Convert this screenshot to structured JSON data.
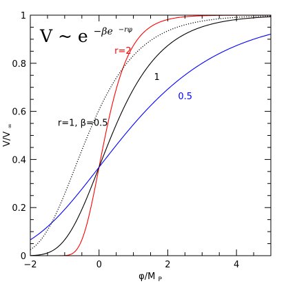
{
  "chart_data": {
    "type": "line",
    "formula": {
      "lhs": "V ~ e",
      "exponent": "−βe",
      "exponent_sup": "−rφ"
    },
    "xlabel": {
      "main": "φ/M",
      "sub": "P"
    },
    "ylabel": {
      "main": "V/V",
      "sub": "∞"
    },
    "xlim": [
      -2,
      5
    ],
    "ylim": [
      0,
      1
    ],
    "x_ticks": [
      "−2",
      "0",
      "2",
      "4"
    ],
    "y_ticks": [
      "0",
      "0.2",
      "0.4",
      "0.6",
      "0.8",
      "1"
    ],
    "grid": false,
    "series": [
      {
        "name": "r=2",
        "r": 2,
        "beta": 1,
        "color": "#ff0000",
        "dash": "solid",
        "x": [
          -2,
          -1,
          -0.5,
          0,
          0.5,
          1,
          2,
          3,
          4,
          5
        ],
        "y": [
          0.0,
          0.001,
          0.066,
          0.368,
          0.692,
          0.873,
          0.982,
          0.998,
          1.0,
          1.0
        ]
      },
      {
        "name": "1",
        "r": 1,
        "beta": 1,
        "color": "#000000",
        "dash": "solid",
        "x": [
          -2,
          -1,
          0,
          1,
          2,
          3,
          4,
          5
        ],
        "y": [
          0.001,
          0.066,
          0.368,
          0.692,
          0.873,
          0.951,
          0.982,
          0.993
        ]
      },
      {
        "name": "0.5",
        "r": 0.5,
        "beta": 1,
        "color": "#0000ff",
        "dash": "solid",
        "x": [
          -2,
          -1,
          0,
          1,
          2,
          3,
          4,
          5
        ],
        "y": [
          0.066,
          0.192,
          0.368,
          0.545,
          0.692,
          0.8,
          0.873,
          0.921
        ]
      },
      {
        "name": "r=1, β=0.5",
        "r": 1,
        "beta": 0.5,
        "color": "#000000",
        "dash": "dotted",
        "x": [
          -2,
          -1,
          0,
          1,
          2,
          3,
          4,
          5
        ],
        "y": [
          0.025,
          0.257,
          0.607,
          0.832,
          0.935,
          0.975,
          0.991,
          0.997
        ]
      }
    ],
    "annotations": [
      {
        "text": "r=2",
        "color": "#ff0000",
        "x": 0.45,
        "y": 0.84
      },
      {
        "text": "1",
        "color": "#000000",
        "x": 1.6,
        "y": 0.73
      },
      {
        "text": "0.5",
        "color": "#0000ff",
        "x": 2.3,
        "y": 0.65
      },
      {
        "text": "r=1, β=0.5",
        "color": "#000000",
        "x": -1.2,
        "y": 0.54
      }
    ]
  }
}
